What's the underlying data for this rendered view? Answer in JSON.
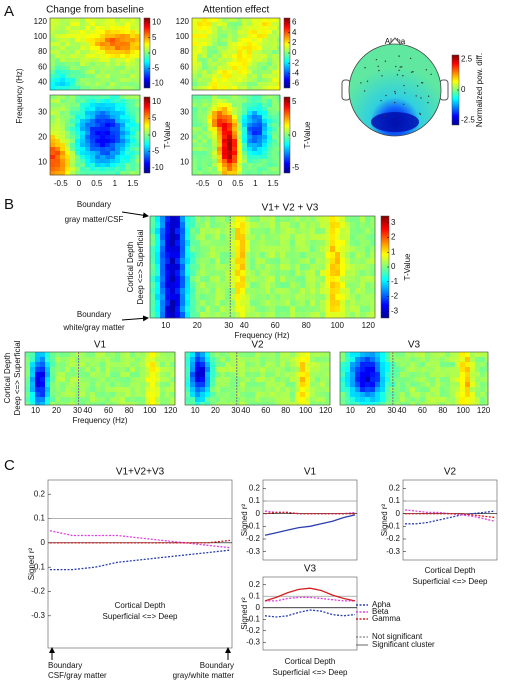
{
  "panel_a": {
    "label": "A",
    "titles": [
      "Change from baseline",
      "Attention effect"
    ],
    "ylabel": "Frequency (Hz)",
    "high_freq_ticks": [
      120,
      100,
      80,
      60,
      40
    ],
    "low_freq_ticks": [
      30,
      20,
      10
    ],
    "time_ticks": [
      -0.5,
      0,
      0.5,
      1,
      1.5
    ],
    "colorbars": [
      {
        "ticks": [
          10,
          5,
          0,
          -5,
          -10
        ]
      },
      {
        "ticks": [
          10,
          5,
          0,
          -5,
          -10
        ],
        "label": "T-Value"
      },
      {
        "ticks": [
          6,
          4,
          2,
          0,
          -2,
          -4,
          -6
        ]
      },
      {
        "ticks": [
          5,
          0,
          -5
        ],
        "label": "T-Value"
      }
    ],
    "topo": {
      "title": "Alpha",
      "ticks": [
        2.5,
        0,
        -2.5
      ],
      "label": "Normalized pow. diff."
    }
  },
  "panel_b": {
    "label": "B",
    "title": "V1+ V2 + V3",
    "top_boundary": [
      "Boundary",
      "gray matter/CSF"
    ],
    "bottom_boundary": [
      "Boundary",
      "white/gray matter"
    ],
    "ylabel": [
      "Cortical Depth",
      "Deep <=> Superficial"
    ],
    "xticks": [
      10,
      20,
      30,
      40,
      60,
      80,
      100,
      120
    ],
    "xlabel": "Frequency (Hz)",
    "colorbar": {
      "ticks": [
        3,
        2,
        1,
        0,
        -1,
        -2,
        -3
      ],
      "label": "T-Value"
    },
    "areas": [
      "V1",
      "V2",
      "V3"
    ]
  },
  "panel_c": {
    "label": "C",
    "ylabel": "Signed r²",
    "ylim": [
      -0.35,
      0.25
    ],
    "yticks": [
      0.2,
      0.1,
      0,
      -0.1,
      -0.2,
      -0.3
    ],
    "hlines": [
      0.1,
      0
    ],
    "boundaries": [
      [
        "Boundary",
        "CSF/gray matter"
      ],
      [
        "Boundary",
        "gray/white matter"
      ]
    ],
    "series_styles": [
      {
        "name": "Apha",
        "color": "#2b3fb0"
      },
      {
        "name": "Beta",
        "color": "#e040e0"
      },
      {
        "name": "Gamma",
        "color": "#d62020"
      }
    ],
    "line_styles": [
      "Not significant",
      "Significant cluster"
    ],
    "charts": [
      {
        "title": "V1+V2+V3",
        "xlabel": [
          "Cortical Depth",
          "Superficial <=> Deep"
        ],
        "series": [
          {
            "values": [
              -0.11,
              -0.11,
              -0.1,
              -0.08,
              -0.07,
              -0.06,
              -0.05,
              -0.04,
              -0.03
            ],
            "dashed": true
          },
          {
            "values": [
              0.05,
              0.03,
              0.03,
              0.03,
              0.02,
              0.01,
              0.0,
              -0.01,
              -0.02
            ],
            "dashed": true
          },
          {
            "values": [
              0,
              0,
              0,
              0,
              0,
              0,
              0,
              0,
              0.01
            ],
            "dashed": true
          }
        ]
      },
      {
        "title": "V1",
        "series": [
          {
            "values": [
              -0.17,
              -0.15,
              -0.13,
              -0.11,
              -0.1,
              -0.08,
              -0.06,
              -0.03,
              -0.01
            ],
            "dashed": false
          },
          {
            "values": [
              0.02,
              0.01,
              0.01,
              0,
              0,
              0,
              0,
              0,
              0.01
            ],
            "dashed": true
          },
          {
            "values": [
              0,
              0.01,
              0.01,
              0,
              0,
              0,
              0,
              0,
              0
            ],
            "dashed": true
          }
        ]
      },
      {
        "title": "V2",
        "xlabel": [
          "Cortical Depth",
          "Superficial <=> Deep"
        ],
        "series": [
          {
            "values": [
              -0.08,
              -0.08,
              -0.07,
              -0.05,
              -0.03,
              -0.01,
              0,
              0.01,
              0.02
            ],
            "dashed": true
          },
          {
            "values": [
              0.03,
              0.02,
              0.01,
              0.01,
              0,
              -0.01,
              -0.02,
              -0.04,
              -0.06
            ],
            "dashed": true
          },
          {
            "values": [
              0,
              0,
              0,
              0,
              0,
              0,
              -0.01,
              -0.02,
              -0.03
            ],
            "dashed": true
          }
        ]
      },
      {
        "title": "V3",
        "xlabel": [
          "Cortical Depth",
          "Superficial <=> Deep"
        ],
        "series": [
          {
            "values": [
              -0.07,
              -0.08,
              -0.07,
              -0.04,
              -0.02,
              -0.03,
              -0.06,
              -0.07,
              -0.06
            ],
            "dashed": true
          },
          {
            "values": [
              0.06,
              0.06,
              0.08,
              0.09,
              0.09,
              0.08,
              0.07,
              0.06,
              0.06
            ],
            "dashed": true
          },
          {
            "values": [
              0.06,
              0.09,
              0.13,
              0.16,
              0.17,
              0.15,
              0.11,
              0.08,
              0.06
            ],
            "dashed": false
          }
        ]
      }
    ]
  }
}
